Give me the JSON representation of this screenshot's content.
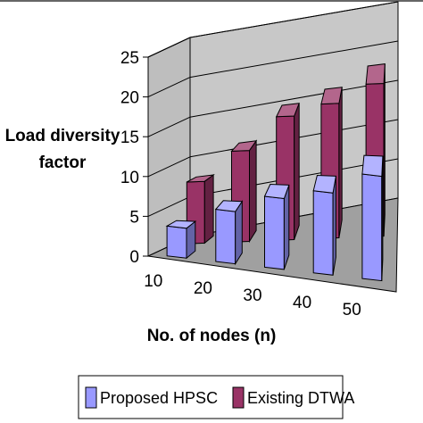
{
  "chart_data": {
    "type": "bar",
    "style": "3d-clustered-depth",
    "categories": [
      "10",
      "20",
      "30",
      "40",
      "50"
    ],
    "series": [
      {
        "name": "Proposed HPSC",
        "values": [
          4,
          7,
          9.5,
          11,
          14
        ],
        "color": "#9999ff"
      },
      {
        "name": "Existing DTWA",
        "values": [
          8.5,
          12.5,
          17,
          18.5,
          21
        ],
        "color": "#993366"
      }
    ],
    "ylabel": "Load diversity factor",
    "xlabel": "No. of nodes (n)",
    "ylim": [
      0,
      25
    ],
    "yticks": [
      "0",
      "5",
      "10",
      "15",
      "20",
      "25"
    ],
    "grid": true,
    "legend": "bottom",
    "colors": {
      "wall": "#c8c8c8",
      "floor": "#a0a0a0",
      "grid": "#000000"
    }
  }
}
